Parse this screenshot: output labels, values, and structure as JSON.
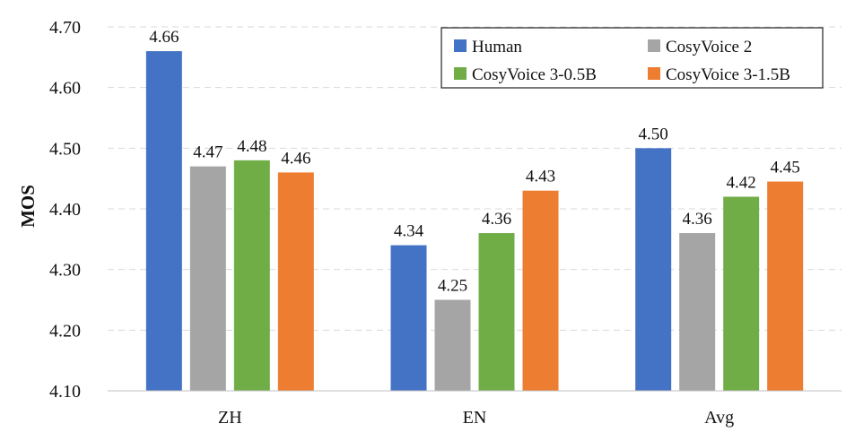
{
  "chart_data": {
    "type": "bar",
    "title": "",
    "xlabel": "",
    "ylabel": "MOS",
    "ylim": [
      4.1,
      4.7
    ],
    "yticks": [
      "4.10",
      "4.20",
      "4.30",
      "4.40",
      "4.50",
      "4.60",
      "4.70"
    ],
    "grid": true,
    "legend_position": "top-right",
    "categories": [
      "ZH",
      "EN",
      "Avg"
    ],
    "series": [
      {
        "name": "Human",
        "color": "#4472c4",
        "values": [
          4.66,
          4.34,
          4.5
        ],
        "labels": [
          "4.66",
          "4.34",
          "4.50"
        ]
      },
      {
        "name": "CosyVoice 2",
        "color": "#a5a5a5",
        "values": [
          4.47,
          4.25,
          4.36
        ],
        "labels": [
          "4.47",
          "4.25",
          "4.36"
        ]
      },
      {
        "name": "CosyVoice 3-0.5B",
        "color": "#70ad47",
        "values": [
          4.48,
          4.36,
          4.42
        ],
        "labels": [
          "4.48",
          "4.36",
          "4.42"
        ]
      },
      {
        "name": "CosyVoice 3-1.5B",
        "color": "#ed7d31",
        "values": [
          4.46,
          4.43,
          4.445
        ],
        "labels": [
          "4.46",
          "4.43",
          "4.45"
        ]
      }
    ]
  }
}
